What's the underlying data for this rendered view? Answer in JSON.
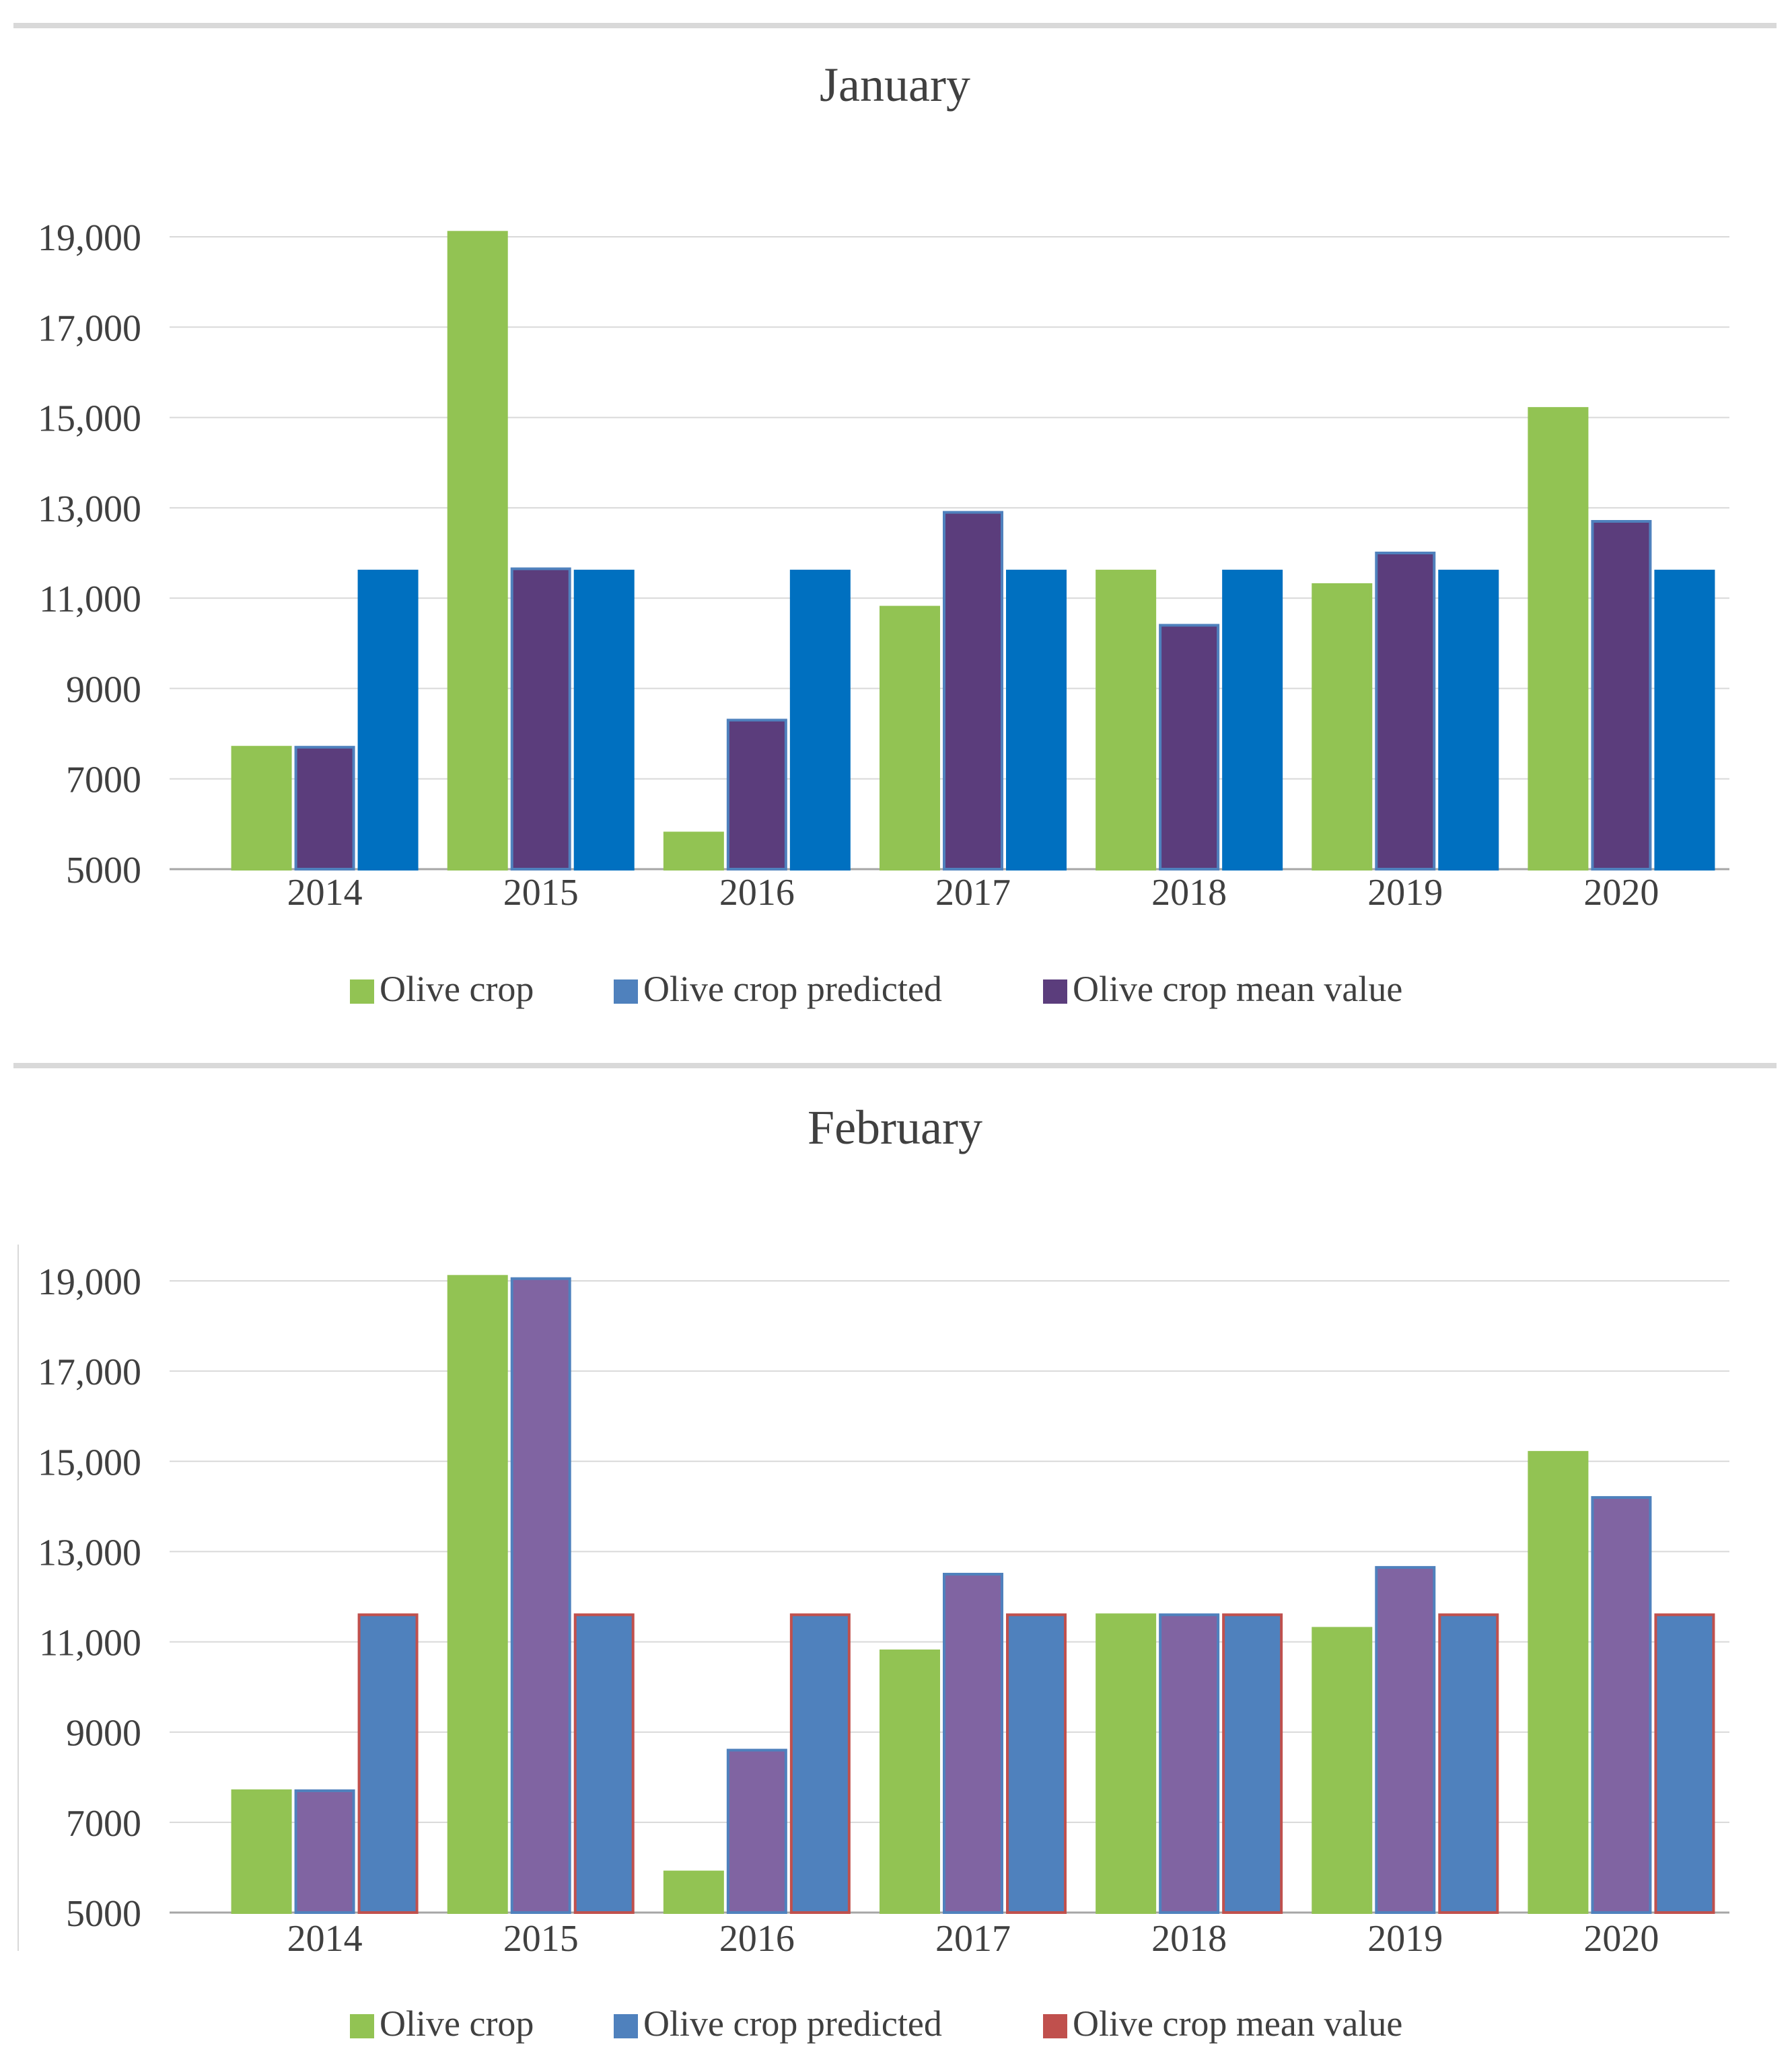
{
  "chart_data": [
    {
      "type": "bar",
      "title": "January",
      "categories": [
        "2014",
        "2015",
        "2016",
        "2017",
        "2018",
        "2019",
        "2020"
      ],
      "ylim": [
        5000,
        19000
      ],
      "yticks": [
        5000,
        7000,
        9000,
        11000,
        13000,
        15000,
        17000,
        19000
      ],
      "ytick_labels": [
        "5000",
        "7000",
        "9000",
        "11,000",
        "13,000",
        "15,000",
        "17,000",
        "19,000"
      ],
      "grid": true,
      "legend_position": "bottom",
      "series": [
        {
          "name": "Olive crop",
          "legend_color": "#92c353",
          "fill": "#92c353",
          "edge": "#92c353",
          "values": [
            7700,
            19100,
            5800,
            10800,
            11600,
            11300,
            15200
          ]
        },
        {
          "name": "Olive crop predicted",
          "legend_color": "#4f81bd",
          "fill": "#5b3d7c",
          "edge": "#4f81bd",
          "values": [
            7700,
            11650,
            8300,
            12900,
            10400,
            12000,
            12700
          ]
        },
        {
          "name": "Olive crop mean value",
          "legend_color": "#5b3d7c",
          "fill": "#0070c0",
          "edge": "#0070c0",
          "values": [
            11600,
            11600,
            11600,
            11600,
            11600,
            11600,
            11600
          ]
        }
      ]
    },
    {
      "type": "bar",
      "title": "February",
      "categories": [
        "2014",
        "2015",
        "2016",
        "2017",
        "2018",
        "2019",
        "2020"
      ],
      "ylim": [
        5000,
        19000
      ],
      "yticks": [
        5000,
        7000,
        9000,
        11000,
        13000,
        15000,
        17000,
        19000
      ],
      "ytick_labels": [
        "5000",
        "7000",
        "9000",
        "11,000",
        "13,000",
        "15,000",
        "17,000",
        "19,000"
      ],
      "grid": true,
      "legend_position": "bottom",
      "series": [
        {
          "name": "Olive crop",
          "legend_color": "#92c353",
          "fill": "#92c353",
          "edge": "#92c353",
          "values": [
            7700,
            19100,
            5900,
            10800,
            11600,
            11300,
            15200
          ]
        },
        {
          "name": "Olive crop predicted",
          "legend_color": "#4f81bd",
          "fill": "#8064a2",
          "edge": "#4f81bd",
          "values": [
            7700,
            19050,
            8600,
            12500,
            11600,
            12650,
            14200
          ]
        },
        {
          "name": "Olive crop mean value",
          "legend_color": "#c0504d",
          "fill": "#4f81bd",
          "edge": "#c0504d",
          "values": [
            11600,
            11600,
            11600,
            11600,
            11600,
            11600,
            11600
          ]
        }
      ]
    }
  ]
}
